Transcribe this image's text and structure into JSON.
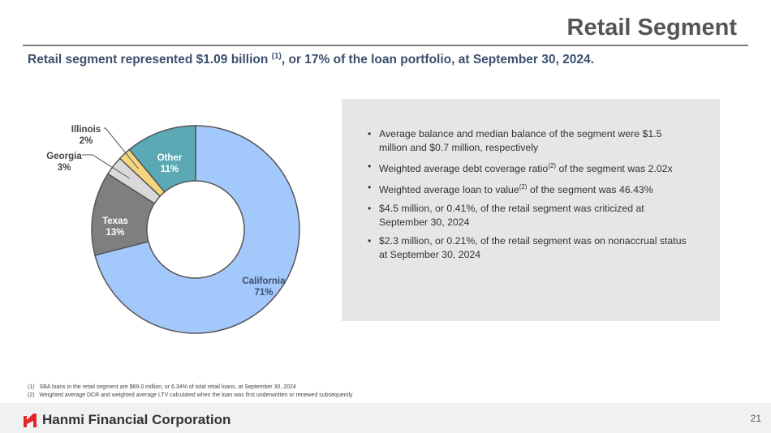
{
  "header": {
    "title": "Retail Segment",
    "subtitle_pre": "Retail segment represented $1.09 billion ",
    "subtitle_sup": "(1)",
    "subtitle_post": ", or 17% of the loan portfolio, at September 30, 2024."
  },
  "bullets": [
    {
      "pre": "Average balance and median balance of the segment were $1.5 million and $0.7 million, respectively",
      "sup": "",
      "post": ""
    },
    {
      "pre": "Weighted average debt coverage ratio",
      "sup": "(2)",
      "post": " of the segment was 2.02x"
    },
    {
      "pre": "Weighted average loan to value",
      "sup": "(2)",
      "post": " of the segment was 46.43%"
    },
    {
      "pre": "$4.5 million, or 0.41%, of the retail segment was criticized at September 30, 2024",
      "sup": "",
      "post": ""
    },
    {
      "pre": "$2.3 million, or 0.21%, of the retail segment was on nonaccrual status at September 30, 2024",
      "sup": "",
      "post": ""
    }
  ],
  "footnotes": [
    {
      "num": "(1)",
      "text": "SBA loans in the retail segment are $69.0 million, or 6.34% of total retail loans, at September 30, 2024"
    },
    {
      "num": "(2)",
      "text": "Weighted average DCR and weighted average LTV calculated when the loan was first underwritten or renewed subsequently"
    }
  ],
  "footer": {
    "company": "Hanmi Financial Corporation",
    "page": "21",
    "brand_color": "#e4242b"
  },
  "chart_data": {
    "type": "pie",
    "donut": true,
    "title": "",
    "categories": [
      "California",
      "Texas",
      "Georgia",
      "Illinois",
      "Other"
    ],
    "values": [
      71,
      13,
      3,
      2,
      11
    ],
    "labels": [
      "71%",
      "13%",
      "3%",
      "2%",
      "11%"
    ],
    "colors": [
      "#a3c8fb",
      "#7f7f7f",
      "#d9d9d9",
      "#f4d77c",
      "#5aa9b5"
    ]
  }
}
